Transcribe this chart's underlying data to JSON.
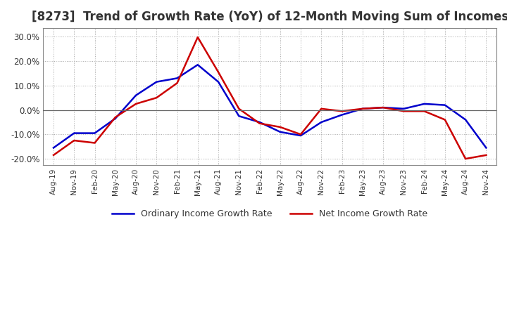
{
  "title": "[8273]  Trend of Growth Rate (YoY) of 12-Month Moving Sum of Incomes",
  "title_fontsize": 12,
  "ylim": [
    -0.225,
    0.335
  ],
  "yticks": [
    -0.2,
    -0.1,
    0.0,
    0.1,
    0.2,
    0.3
  ],
  "background_color": "#ffffff",
  "grid_color": "#aaaaaa",
  "ordinary_color": "#0000cc",
  "net_color": "#cc0000",
  "legend_ordinary": "Ordinary Income Growth Rate",
  "legend_net": "Net Income Growth Rate",
  "x_labels": [
    "Aug-19",
    "Nov-19",
    "Feb-20",
    "May-20",
    "Aug-20",
    "Nov-20",
    "Feb-21",
    "May-21",
    "Aug-21",
    "Nov-21",
    "Feb-22",
    "May-22",
    "Aug-22",
    "Nov-22",
    "Feb-23",
    "May-23",
    "Aug-23",
    "Nov-23",
    "Feb-24",
    "May-24",
    "Aug-24",
    "Nov-24"
  ],
  "ordinary_income": [
    -0.155,
    -0.095,
    -0.095,
    -0.035,
    0.06,
    0.115,
    0.13,
    0.185,
    0.115,
    -0.025,
    -0.05,
    -0.09,
    -0.105,
    -0.05,
    -0.02,
    0.005,
    0.01,
    0.005,
    0.025,
    0.02,
    -0.04,
    -0.155
  ],
  "net_income": [
    -0.185,
    -0.125,
    -0.135,
    -0.03,
    0.025,
    0.05,
    0.11,
    0.298,
    0.155,
    0.005,
    -0.055,
    -0.07,
    -0.1,
    0.005,
    -0.005,
    0.005,
    0.01,
    -0.005,
    -0.005,
    -0.04,
    -0.2,
    -0.185
  ]
}
